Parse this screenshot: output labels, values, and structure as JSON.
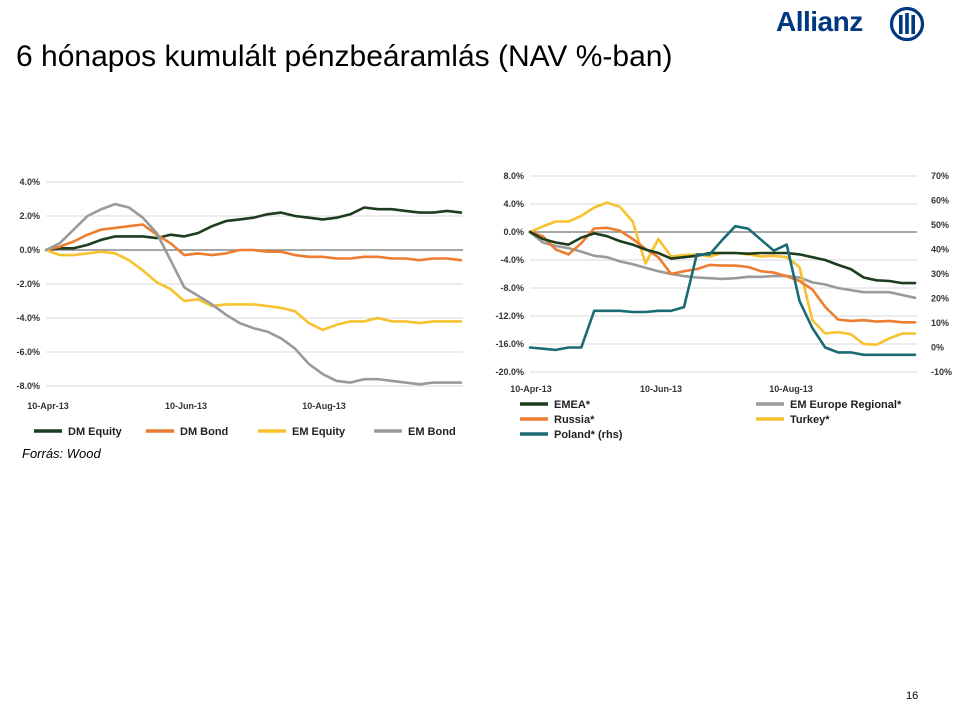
{
  "slide": {
    "title": "6 hónapos kumulált pénzbeáramlás (NAV %-ban)",
    "brand": "Allianz",
    "source": "Forrás: Wood",
    "page_number": "16"
  },
  "colors": {
    "brand": "#003781",
    "dm_equity": "#1e3d1e",
    "dm_bond": "#ed7d31",
    "em_equity": "#f6c22f",
    "em_bond": "#9a9a9a",
    "emea": "#1e3d1e",
    "russia": "#ed7d31",
    "poland": "#1a6b74",
    "em_europe": "#9a9a9a",
    "turkey": "#f6c22f"
  },
  "chart_data": [
    {
      "type": "line",
      "title": "",
      "xlabel": "",
      "ylabel": "",
      "ylim": [
        -8,
        4
      ],
      "y_ticks": [
        "4.0%",
        "2.0%",
        "0.0%",
        "-2.0%",
        "-4.0%",
        "-6.0%",
        "-8.0%"
      ],
      "x_ticks": [
        "10-Apr-13",
        "10-Jun-13",
        "10-Aug-13"
      ],
      "legend_position": "bottom",
      "x": [
        0,
        1,
        2,
        3,
        4,
        5,
        6,
        7,
        8,
        9,
        10,
        11,
        12,
        13,
        14,
        15,
        16,
        17,
        18,
        19,
        20,
        21,
        22,
        23,
        24,
        25,
        26,
        27,
        28,
        29,
        30
      ],
      "series": [
        {
          "name": "DM Equity",
          "color_key": "dm_equity",
          "values": [
            0,
            0.1,
            0.1,
            0.3,
            0.6,
            0.8,
            0.8,
            0.8,
            0.7,
            0.9,
            0.8,
            1.0,
            1.4,
            1.7,
            1.8,
            1.9,
            2.1,
            2.2,
            2.0,
            1.9,
            1.8,
            1.9,
            2.1,
            2.5,
            2.4,
            2.4,
            2.3,
            2.2,
            2.2,
            2.3,
            2.2
          ]
        },
        {
          "name": "DM Bond",
          "color_key": "dm_bond",
          "values": [
            0,
            0.2,
            0.5,
            0.9,
            1.2,
            1.3,
            1.4,
            1.5,
            0.9,
            0.4,
            -0.3,
            -0.2,
            -0.3,
            -0.2,
            0,
            0,
            -0.1,
            -0.1,
            -0.3,
            -0.4,
            -0.4,
            -0.5,
            -0.5,
            -0.4,
            -0.4,
            -0.5,
            -0.5,
            -0.6,
            -0.5,
            -0.5,
            -0.6
          ]
        },
        {
          "name": "EM Equity",
          "color_key": "em_equity",
          "values": [
            0,
            -0.3,
            -0.3,
            -0.2,
            -0.1,
            -0.2,
            -0.6,
            -1.2,
            -1.9,
            -2.3,
            -3.0,
            -2.9,
            -3.3,
            -3.2,
            -3.2,
            -3.2,
            -3.3,
            -3.4,
            -3.6,
            -4.3,
            -4.7,
            -4.4,
            -4.2,
            -4.2,
            -4.0,
            -4.2,
            -4.2,
            -4.3,
            -4.2,
            -4.2,
            -4.2
          ]
        },
        {
          "name": "EM Bond",
          "color_key": "em_bond",
          "values": [
            0,
            0.4,
            1.2,
            2.0,
            2.4,
            2.7,
            2.5,
            1.9,
            1.0,
            -0.6,
            -2.2,
            -2.7,
            -3.2,
            -3.8,
            -4.3,
            -4.6,
            -4.8,
            -5.2,
            -5.8,
            -6.7,
            -7.3,
            -7.7,
            -7.8,
            -7.6,
            -7.6,
            -7.7,
            -7.8,
            -7.9,
            -7.8,
            -7.8,
            -7.8
          ]
        }
      ]
    },
    {
      "type": "line",
      "title": "",
      "xlabel": "",
      "ylabel": "",
      "ylim": [
        -20,
        8
      ],
      "y_ticks": [
        "8.0%",
        "4.0%",
        "0.0%",
        "-4.0%",
        "-8.0%",
        "-12.0%",
        "-16.0%",
        "-20.0%"
      ],
      "y2lim": [
        -10,
        70
      ],
      "y2_ticks": [
        "70%",
        "60%",
        "50%",
        "40%",
        "30%",
        "20%",
        "10%",
        "0%",
        "-10%"
      ],
      "x_ticks": [
        "10-Apr-13",
        "10-Jun-13",
        "10-Aug-13"
      ],
      "legend_position": "bottom",
      "x": [
        0,
        1,
        2,
        3,
        4,
        5,
        6,
        7,
        8,
        9,
        10,
        11,
        12,
        13,
        14,
        15,
        16,
        17,
        18,
        19,
        20,
        21,
        22,
        23,
        24,
        25,
        26,
        27,
        28,
        29,
        30
      ],
      "series": [
        {
          "name": "EMEA*",
          "color_key": "emea",
          "axis": "left",
          "values": [
            0,
            -1,
            -1.5,
            -1.8,
            -0.8,
            -0.2,
            -0.6,
            -1.3,
            -1.8,
            -2.5,
            -3.0,
            -3.8,
            -3.6,
            -3.4,
            -3.0,
            -3.0,
            -3.0,
            -3.1,
            -3.0,
            -3.0,
            -3.0,
            -3.2,
            -3.6,
            -4.0,
            -4.7,
            -5.3,
            -6.5,
            -6.9,
            -7.0,
            -7.3,
            -7.3
          ]
        },
        {
          "name": "EM Europe Regional*",
          "color_key": "em_europe",
          "axis": "left",
          "values": [
            0,
            -1.5,
            -2.0,
            -2.3,
            -2.8,
            -3.4,
            -3.6,
            -4.2,
            -4.6,
            -5.1,
            -5.6,
            -6.0,
            -6.3,
            -6.5,
            -6.6,
            -6.7,
            -6.6,
            -6.4,
            -6.4,
            -6.3,
            -6.3,
            -6.5,
            -7.2,
            -7.5,
            -8.0,
            -8.3,
            -8.6,
            -8.6,
            -8.6,
            -9.0,
            -9.4
          ]
        },
        {
          "name": "Russia*",
          "color_key": "russia",
          "axis": "left",
          "values": [
            0,
            -0.6,
            -2.5,
            -3.2,
            -1.6,
            0.5,
            0.6,
            0.2,
            -1.0,
            -2.4,
            -3.6,
            -6.0,
            -5.6,
            -5.3,
            -4.7,
            -4.8,
            -4.8,
            -5.0,
            -5.6,
            -5.8,
            -6.3,
            -7.0,
            -8.2,
            -10.7,
            -12.5,
            -12.7,
            -12.6,
            -12.8,
            -12.7,
            -12.9,
            -12.9
          ]
        },
        {
          "name": "Turkey*",
          "color_key": "turkey",
          "axis": "left",
          "values": [
            0,
            0.8,
            1.5,
            1.5,
            2.3,
            3.5,
            4.2,
            3.6,
            1.5,
            -4.5,
            -1.0,
            -3.5,
            -3.3,
            -3.2,
            -3.5,
            -3.0,
            -3.0,
            -3.2,
            -3.5,
            -3.4,
            -3.6,
            -5.0,
            -12.6,
            -14.5,
            -14.3,
            -14.6,
            -16.0,
            -16.1,
            -15.2,
            -14.5,
            -14.5
          ]
        },
        {
          "name": "Poland* (rhs)",
          "color_key": "poland",
          "axis": "right",
          "values": [
            0,
            -0.5,
            -1,
            0,
            0,
            15,
            15,
            15,
            14.5,
            14.5,
            15,
            15,
            16.5,
            38,
            38,
            44,
            49.5,
            48.5,
            44,
            39.5,
            42,
            19,
            8,
            0,
            -2,
            -2,
            -3,
            -3,
            -3,
            -3,
            -3
          ]
        }
      ]
    }
  ]
}
